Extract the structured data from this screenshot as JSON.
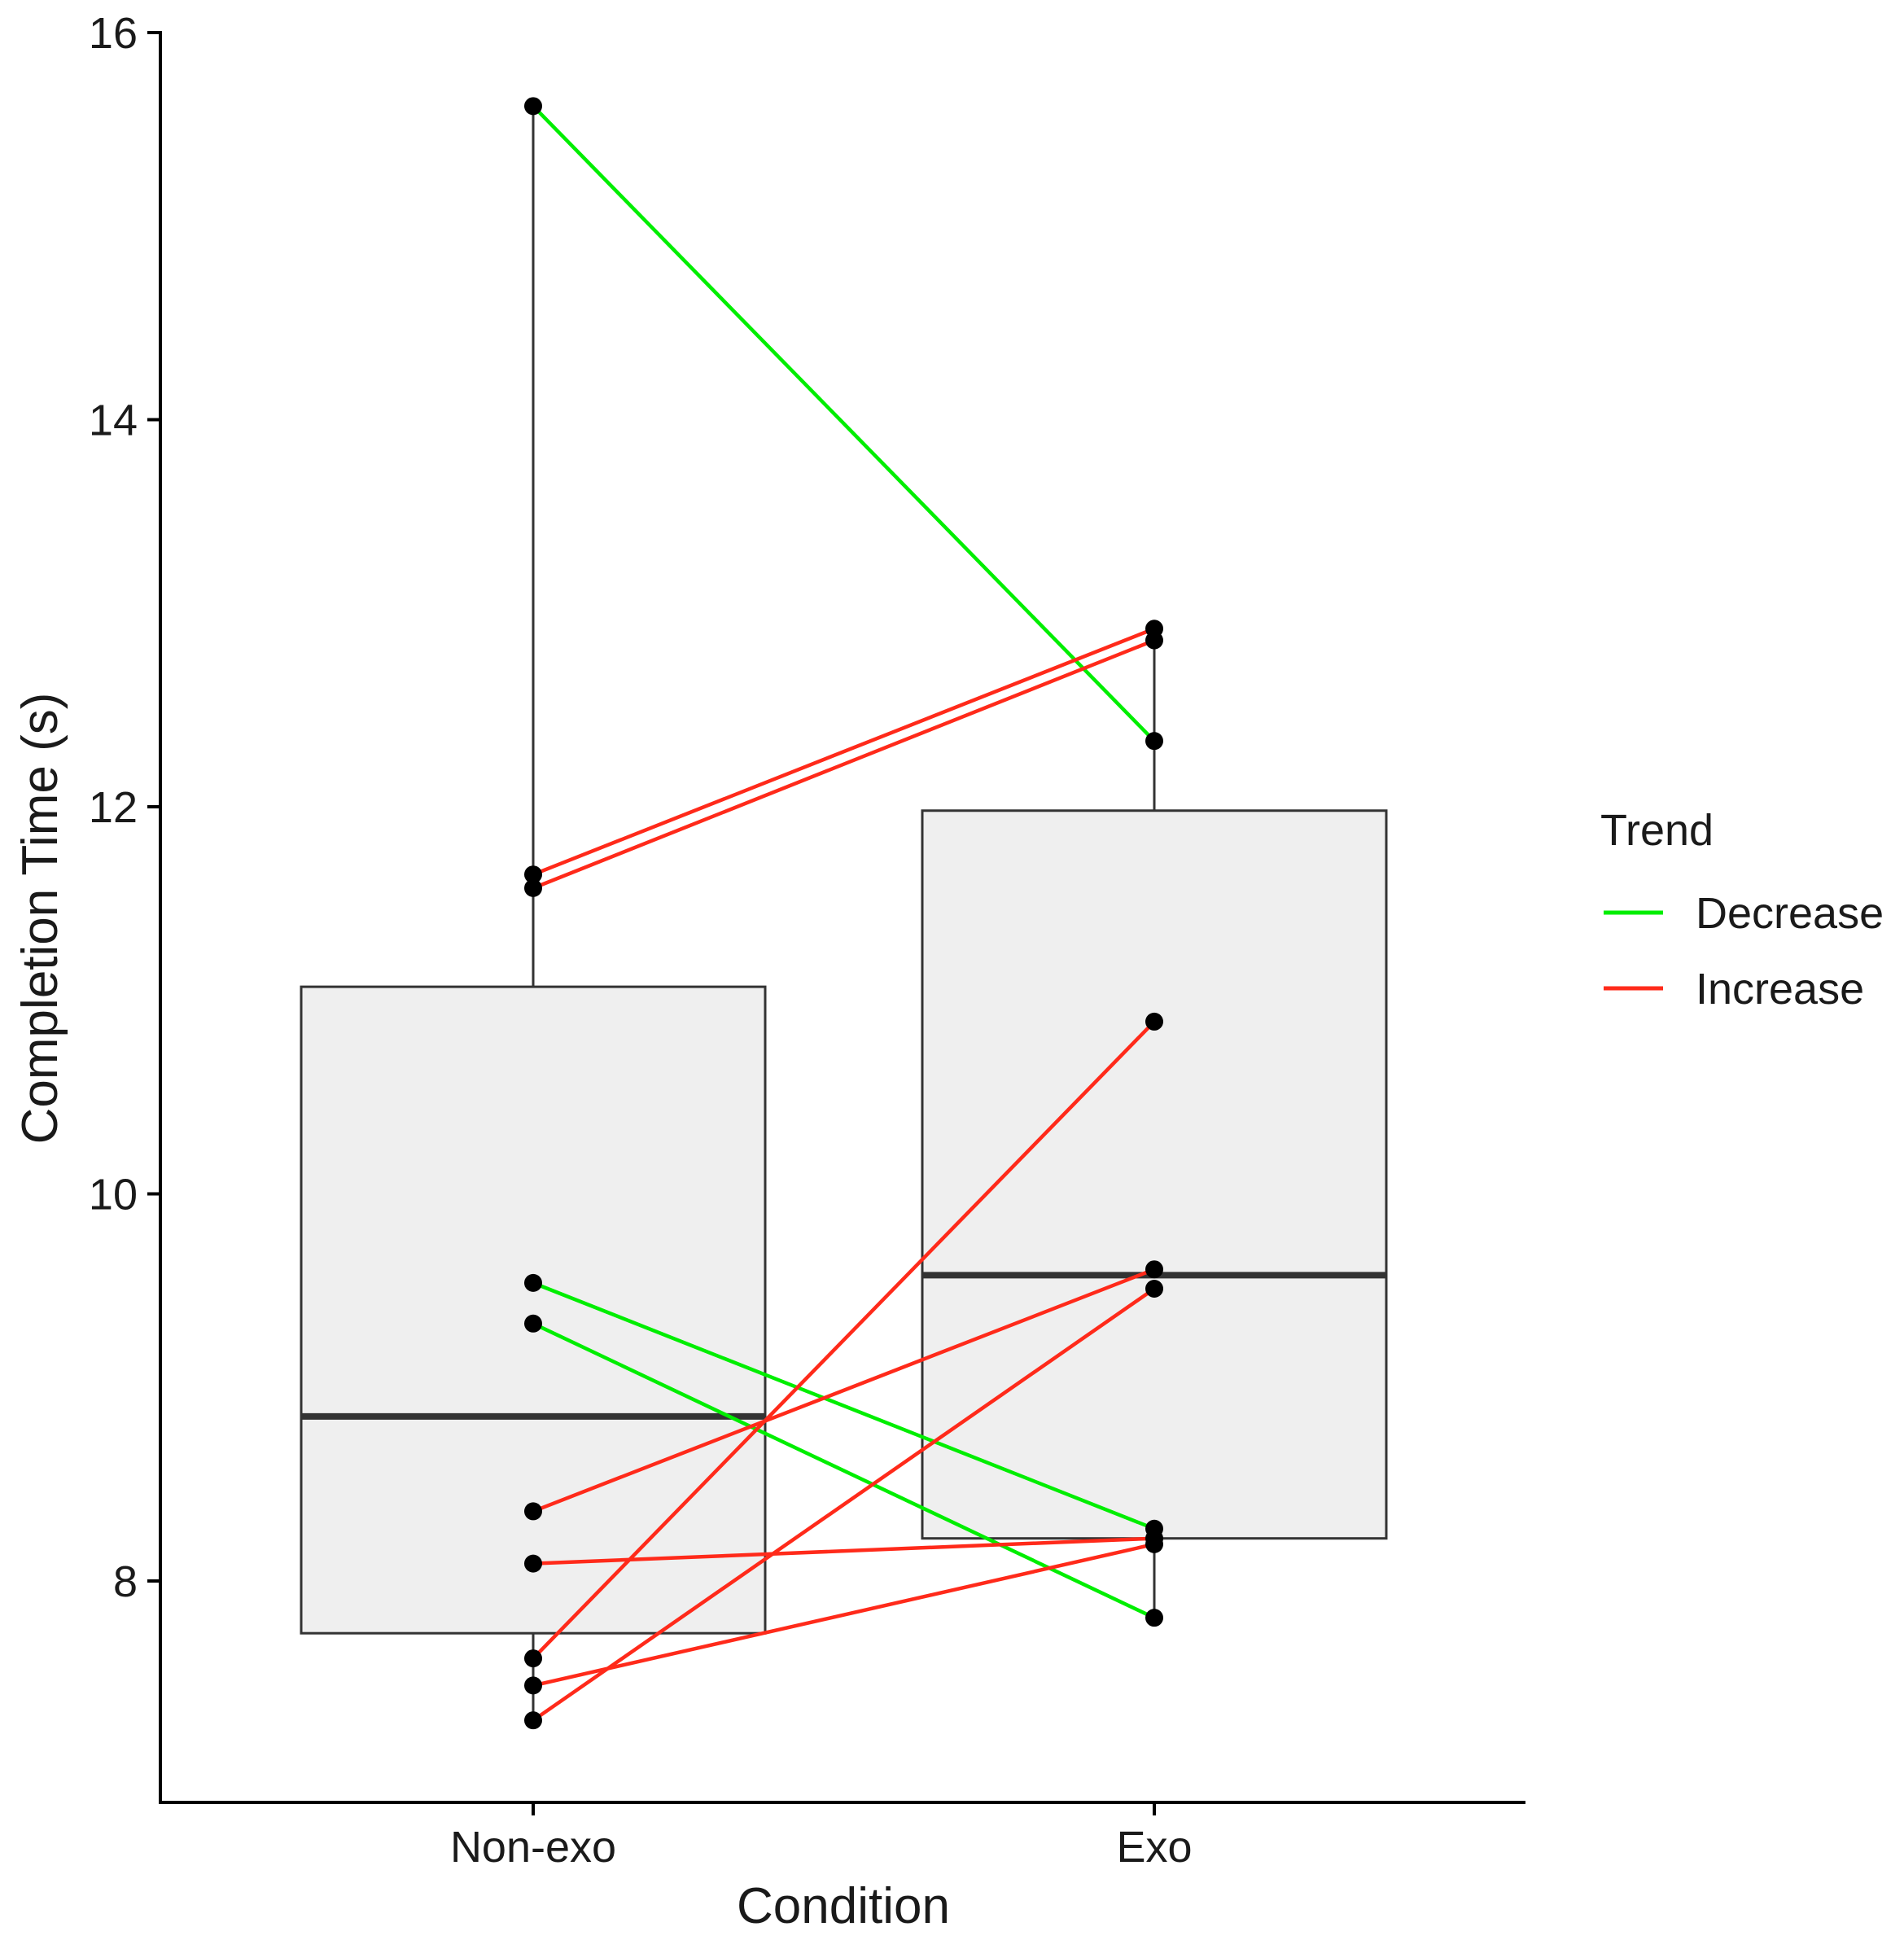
{
  "chart_data": {
    "type": "boxplot",
    "xlabel": "Condition",
    "ylabel": "Completion Time (s)",
    "categories": [
      "Non-exo",
      "Exo"
    ],
    "ylim": [
      6.55,
      16
    ],
    "y_ticks": [
      8,
      10,
      12,
      14,
      16
    ],
    "boxes": [
      {
        "category": "Non-exo",
        "whisker_low": 7.28,
        "q1": 7.73,
        "median": 8.85,
        "q3": 11.07,
        "whisker_high": 15.62
      },
      {
        "category": "Exo",
        "whisker_low": 7.81,
        "q1": 8.22,
        "median": 9.58,
        "q3": 11.98,
        "whisker_high": 12.92
      }
    ],
    "legend": {
      "title": "Trend",
      "position": "right",
      "entries": [
        {
          "label": "Decrease",
          "color": "#00ee00"
        },
        {
          "label": "Increase",
          "color": "#ff2a1a"
        }
      ]
    },
    "pairs": [
      {
        "non_exo": 15.62,
        "exo": 12.34,
        "trend": "Decrease"
      },
      {
        "non_exo": 9.54,
        "exo": 8.27,
        "trend": "Decrease"
      },
      {
        "non_exo": 9.33,
        "exo": 7.81,
        "trend": "Decrease"
      },
      {
        "non_exo": 11.65,
        "exo": 12.92,
        "trend": "Increase"
      },
      {
        "non_exo": 11.58,
        "exo": 12.86,
        "trend": "Increase"
      },
      {
        "non_exo": 8.36,
        "exo": 9.61,
        "trend": "Increase"
      },
      {
        "non_exo": 8.09,
        "exo": 8.22,
        "trend": "Increase"
      },
      {
        "non_exo": 7.6,
        "exo": 10.89,
        "trend": "Increase"
      },
      {
        "non_exo": 7.46,
        "exo": 8.19,
        "trend": "Increase"
      },
      {
        "non_exo": 7.28,
        "exo": 9.51,
        "trend": "Increase"
      }
    ]
  },
  "colors": {
    "box_fill": "#efefef",
    "box_stroke": "#333333",
    "point": "#000000",
    "axis": "#000000"
  }
}
